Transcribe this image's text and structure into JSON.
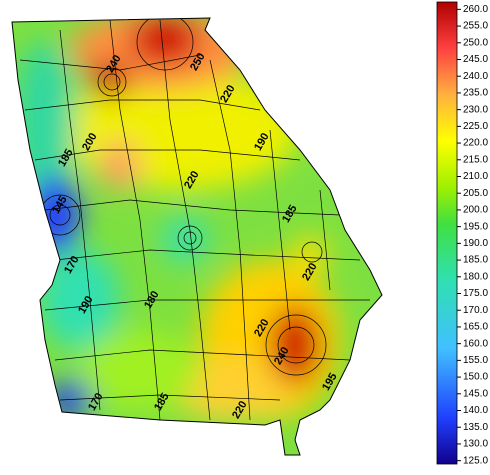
{
  "colorbar": {
    "range": [
      124,
      262.2
    ],
    "ticks": [
      {
        "value": 125,
        "label": "125.0"
      },
      {
        "value": 130,
        "label": "130.0"
      },
      {
        "value": 135,
        "label": "135.0"
      },
      {
        "value": 140,
        "label": "140.0"
      },
      {
        "value": 145,
        "label": "145.0"
      },
      {
        "value": 150,
        "label": "150.0"
      },
      {
        "value": 155,
        "label": "155.0"
      },
      {
        "value": 160,
        "label": "160.0"
      },
      {
        "value": 165,
        "label": "165.0"
      },
      {
        "value": 170,
        "label": "170.0"
      },
      {
        "value": 175,
        "label": "175.0"
      },
      {
        "value": 180,
        "label": "180.0"
      },
      {
        "value": 185,
        "label": "185.0"
      },
      {
        "value": 190,
        "label": "190.0"
      },
      {
        "value": 195,
        "label": "195.0"
      },
      {
        "value": 200,
        "label": "200.0"
      },
      {
        "value": 205,
        "label": "205.0"
      },
      {
        "value": 210,
        "label": "210.0"
      },
      {
        "value": 215,
        "label": "215.0"
      },
      {
        "value": 220,
        "label": "220.0"
      },
      {
        "value": 225,
        "label": "225.0"
      },
      {
        "value": 230,
        "label": "230.0"
      },
      {
        "value": 235,
        "label": "235.0"
      },
      {
        "value": 240,
        "label": "240.0"
      },
      {
        "value": 245,
        "label": "245.0"
      },
      {
        "value": 250,
        "label": "250.0"
      },
      {
        "value": 255,
        "label": "255.0"
      },
      {
        "value": 260,
        "label": "260.0"
      }
    ]
  },
  "contour_labels": [
    145,
    170,
    185,
    200,
    190,
    180,
    170,
    185,
    220,
    220,
    240,
    195,
    220,
    185,
    190,
    220,
    250,
    220,
    240
  ]
}
